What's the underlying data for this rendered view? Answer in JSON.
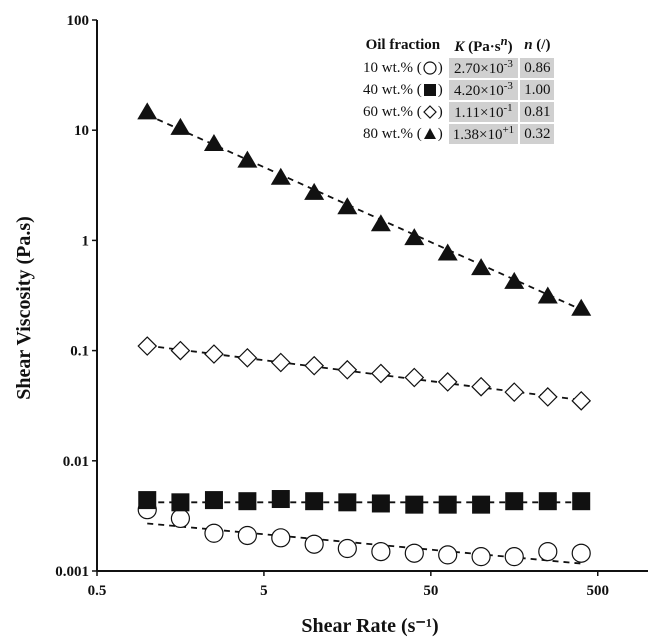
{
  "chart_data": {
    "type": "scatter",
    "xlabel": "Shear Rate (s⁻¹)",
    "ylabel": "Shear Viscosity (Pa.s)",
    "xscale": "log",
    "yscale": "log",
    "xlim": [
      0.5,
      1000
    ],
    "ylim": [
      0.001,
      100
    ],
    "xticks": [
      "0.5",
      "5",
      "50",
      "500"
    ],
    "yticks": [
      "0.001",
      "0.01",
      "0.1",
      "1",
      "10",
      "100"
    ],
    "grid": false,
    "x": [
      1,
      1.58,
      2.51,
      3.98,
      6.31,
      10,
      15.8,
      25.1,
      39.8,
      63.1,
      100,
      158,
      251,
      398
    ],
    "series": [
      {
        "name": "10 wt.%",
        "marker": "circle-open",
        "values": [
          0.0036,
          0.003,
          0.0022,
          0.0021,
          0.002,
          0.00175,
          0.0016,
          0.0015,
          0.00145,
          0.0014,
          0.00135,
          0.00135,
          0.0015,
          0.00145
        ],
        "fit": {
          "K": 0.0027,
          "n": 0.86
        }
      },
      {
        "name": "40 wt.%",
        "marker": "square-filled",
        "values": [
          0.0044,
          0.0042,
          0.0044,
          0.0043,
          0.0045,
          0.0043,
          0.0042,
          0.0041,
          0.004,
          0.004,
          0.004,
          0.0043,
          0.0043,
          0.0043
        ],
        "fit": {
          "K": 0.0042,
          "n": 1.0
        }
      },
      {
        "name": "60 wt.%",
        "marker": "diamond-open",
        "values": [
          0.11,
          0.1,
          0.093,
          0.086,
          0.078,
          0.073,
          0.067,
          0.062,
          0.057,
          0.052,
          0.047,
          0.042,
          0.038,
          0.035
        ],
        "fit": {
          "K": 0.111,
          "n": 0.81
        }
      },
      {
        "name": "80 wt.%",
        "marker": "triangle-filled",
        "values": [
          14.5,
          10.5,
          7.5,
          5.3,
          3.7,
          2.7,
          2.0,
          1.4,
          1.05,
          0.76,
          0.56,
          0.42,
          0.31,
          0.24
        ],
        "fit": {
          "K": 13.8,
          "n": 0.32
        }
      }
    ],
    "legend": {
      "placement": "top-right",
      "headers": [
        "Oil fraction",
        "K (Pa·s",
        "n",
        ") ",
        "n (/)"
      ],
      "rows": [
        {
          "label": "10 wt.% (",
          "marker": "circle-open",
          "K": "2.70×10",
          "K_exp": "-3",
          "n": "0.86"
        },
        {
          "label": "40 wt.% (",
          "marker": "square-filled",
          "K": "4.20×10",
          "K_exp": "-3",
          "n": "1.00"
        },
        {
          "label": "60 wt.% (",
          "marker": "diamond-open",
          "K": "1.11×10",
          "K_exp": "-1",
          "n": "0.81"
        },
        {
          "label": "80 wt.% (",
          "marker": "triangle-filled",
          "K": "1.38×10",
          "K_exp": "+1",
          "n": "0.32"
        }
      ]
    }
  }
}
